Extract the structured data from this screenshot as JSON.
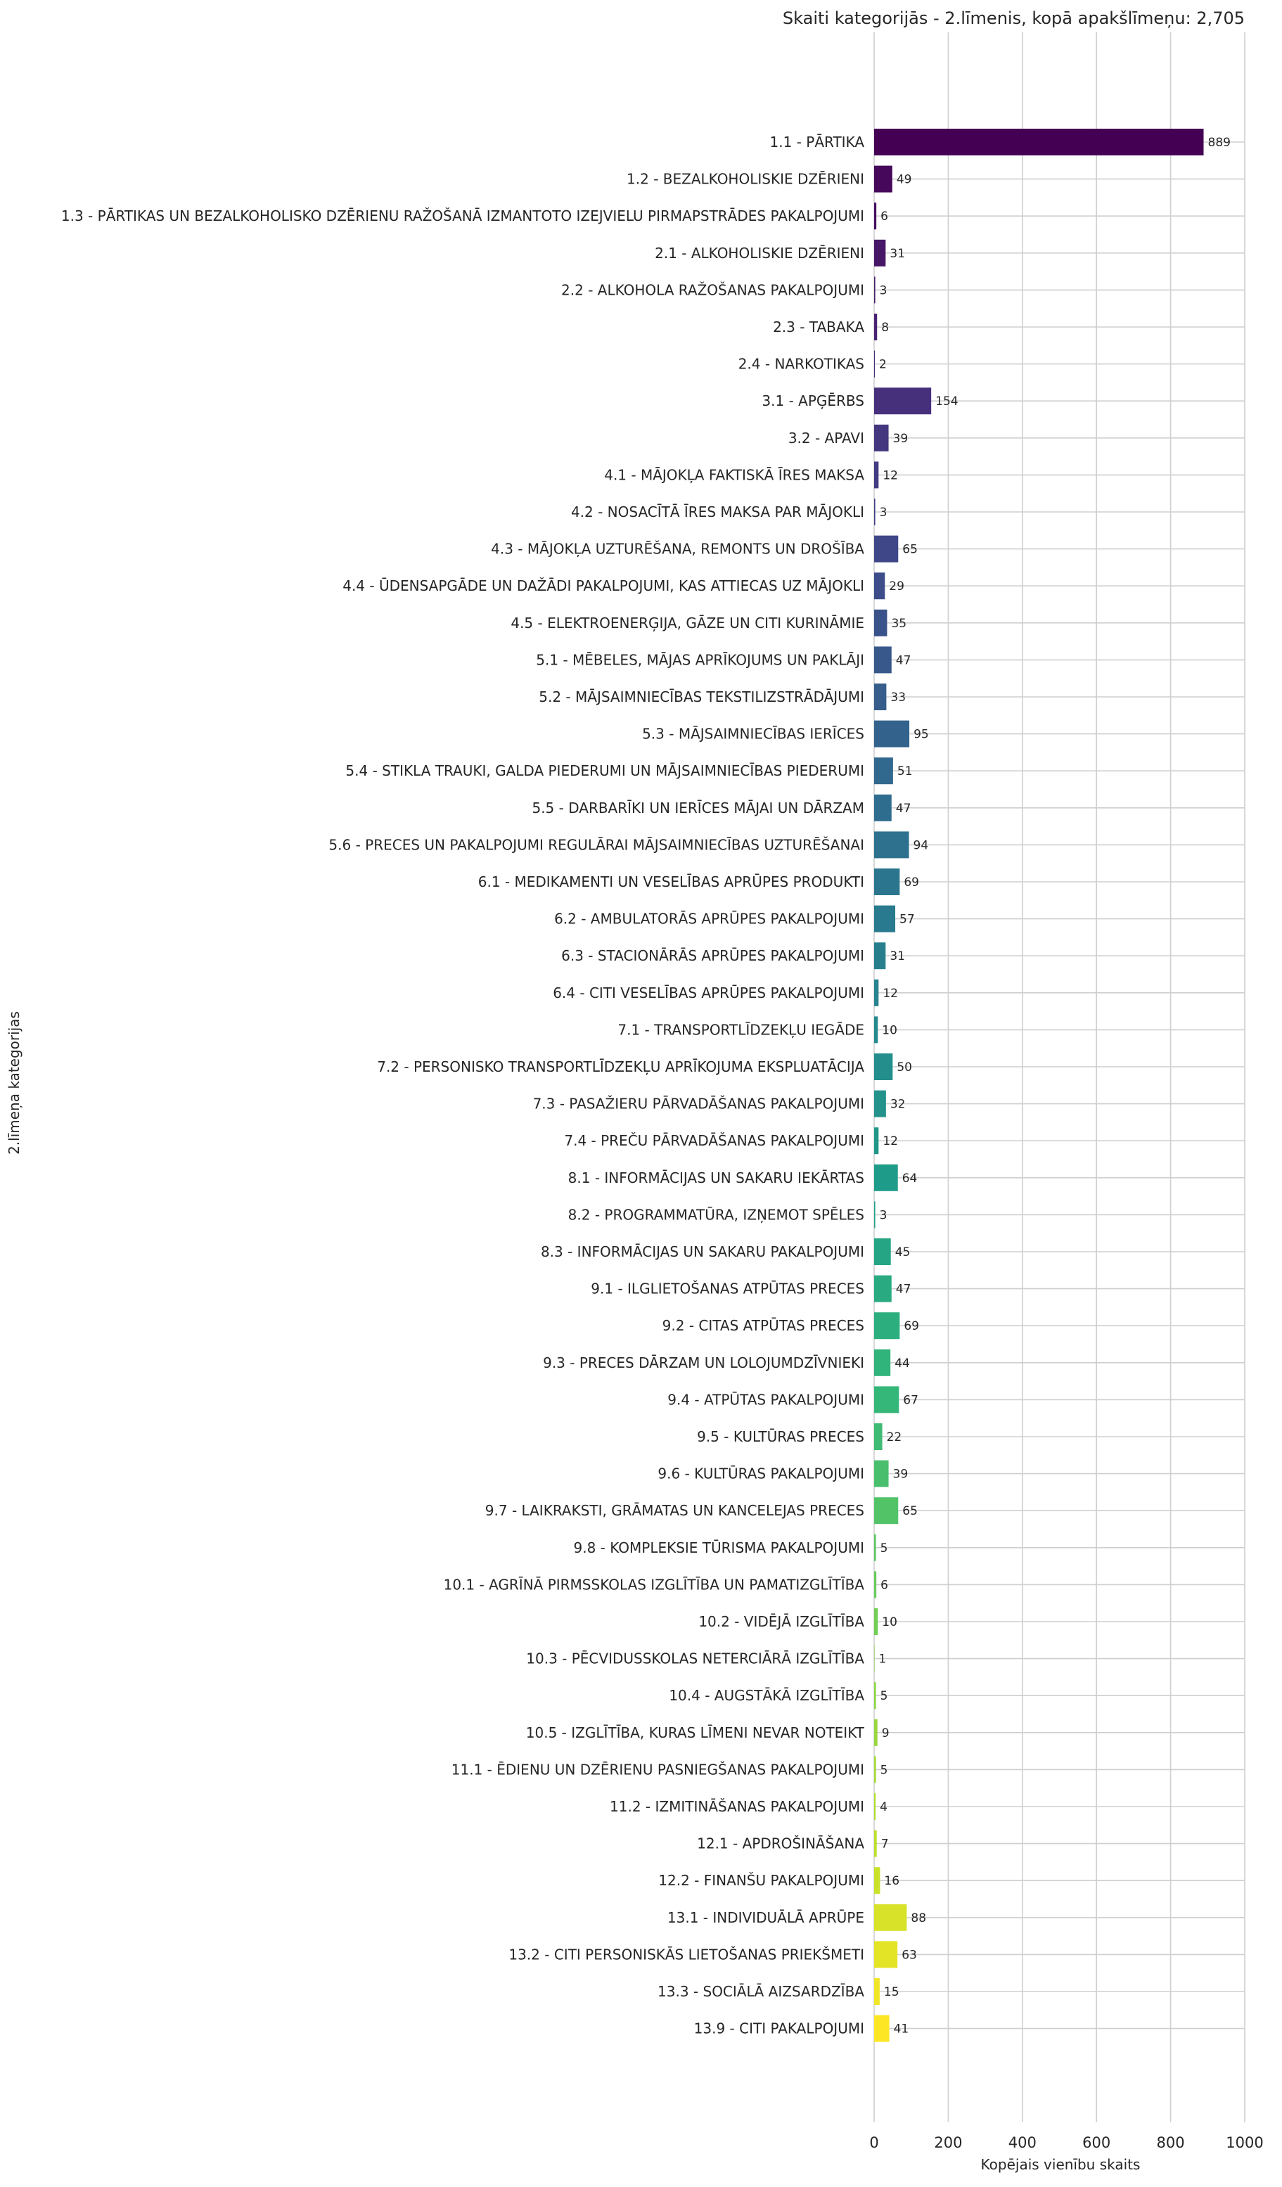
{
  "chart_data": {
    "type": "bar",
    "orientation": "horizontal",
    "title": "Skaiti kategorijās - 2.līmenis, kopā apakšlīmeņu: 2,705",
    "xlabel": "Kopējais vienību skaits",
    "ylabel": "2.līmeņa kategorijas",
    "xlim": [
      0,
      1000
    ],
    "xticks": [
      0,
      200,
      400,
      600,
      800,
      1000
    ],
    "grid": true,
    "colormap": "viridis",
    "categories": [
      "1.1 - PĀRTIKA",
      "1.2 - BEZALKOHOLISKIE DZĒRIENI",
      "1.3 - PĀRTIKAS UN BEZALKOHOLISKO DZĒRIENU RAŽOŠANĀ IZMANTOTO IZEJVIELU PIRMAPSTRĀDES PAKALPOJUMI",
      "2.1 - ALKOHOLISKIE DZĒRIENI",
      "2.2 - ALKOHOLA RAŽOŠANAS PAKALPOJUMI",
      "2.3 - TABAKA",
      "2.4 - NARKOTIKAS",
      "3.1 - APĢĒRBS",
      "3.2 - APAVI",
      "4.1 - MĀJOKĻA FAKTISKĀ ĪRES MAKSA",
      "4.2 - NOSACĪTĀ ĪRES MAKSA PAR MĀJOKLI",
      "4.3 - MĀJOKĻA UZTURĒŠANA, REMONTS UN DROŠĪBA",
      "4.4 - ŪDENSAPGĀDE UN DAŽĀDI PAKALPOJUMI, KAS ATTIECAS UZ MĀJOKLI",
      "4.5 - ELEKTROENERĢIJA, GĀZE UN CITI KURINĀMIE",
      "5.1 - MĒBELES, MĀJAS APRĪKOJUMS UN PAKLĀJI",
      "5.2 - MĀJSAIMNIECĪBAS TEKSTILIZSTRĀDĀJUMI",
      "5.3 - MĀJSAIMNIECĪBAS IERĪCES",
      "5.4 - STIKLA TRAUKI, GALDA PIEDERUMI UN MĀJSAIMNIECĪBAS PIEDERUMI",
      "5.5 - DARBARĪKI UN IERĪCES MĀJAI UN DĀRZAM",
      "5.6 - PRECES UN PAKALPOJUMI REGULĀRAI MĀJSAIMNIECĪBAS UZTURĒŠANAI",
      "6.1 - MEDIKAMENTI UN VESELĪBAS APRŪPES PRODUKTI",
      "6.2 - AMBULATORĀS APRŪPES PAKALPOJUMI",
      "6.3 - STACIONĀRĀS APRŪPES PAKALPOJUMI",
      "6.4 - CITI VESELĪBAS APRŪPES PAKALPOJUMI",
      "7.1 - TRANSPORTLĪDZEKĻU IEGĀDE",
      "7.2 - PERSONISKO TRANSPORTLĪDZEKĻU APRĪKOJUMA EKSPLUATĀCIJA",
      "7.3 - PASAŽIERU PĀRVADĀŠANAS PAKALPOJUMI",
      "7.4 - PREČU PĀRVADĀŠANAS PAKALPOJUMI",
      "8.1 - INFORMĀCIJAS UN SAKARU IEKĀRTAS",
      "8.2 - PROGRAMMATŪRA, IZŅEMOT SPĒLES",
      "8.3 - INFORMĀCIJAS UN SAKARU PAKALPOJUMI",
      "9.1 - ILGLIETOŠANAS ATPŪTAS PRECES",
      "9.2 - CITAS ATPŪTAS PRECES",
      "9.3 - PRECES DĀRZAM UN LOLOJUMDZĪVNIEKI",
      "9.4 - ATPŪTAS PAKALPOJUMI",
      "9.5 - KULTŪRAS PRECES",
      "9.6 - KULTŪRAS PAKALPOJUMI",
      "9.7 - LAIKRAKSTI, GRĀMATAS UN KANCELEJAS PRECES",
      "9.8 - KOMPLEKSIE TŪRISMA PAKALPOJUMI",
      "10.1 - AGRĪNĀ PIRMSSKOLAS IZGLĪTĪBA UN PAMATIZGLĪTĪBA",
      "10.2 - VIDĒJĀ IZGLĪTĪBA",
      "10.3 - PĒCVIDUSSKOLAS NETERCIĀRĀ IZGLĪTĪBA",
      "10.4 - AUGSTĀKĀ IZGLĪTĪBA",
      "10.5 - IZGLĪTĪBA, KURAS LĪMENI NEVAR NOTEIKT",
      "11.1 - ĒDIENU UN DZĒRIENU PASNIEGŠANAS PAKALPOJUMI",
      "11.2 - IZMITINĀŠANAS PAKALPOJUMI",
      "12.1 - APDROŠINĀŠANA",
      "12.2 - FINANŠU PAKALPOJUMI",
      "13.1 - INDIVIDUĀLĀ APRŪPE",
      "13.2 - CITI PERSONISKĀS LIETOŠANAS PRIEKŠMETI",
      "13.3 - SOCIĀLĀ AIZSARDZĪBA",
      "13.9 - CITI PAKALPOJUMI"
    ],
    "values": [
      889,
      49,
      6,
      31,
      3,
      8,
      2,
      154,
      39,
      12,
      3,
      65,
      29,
      35,
      47,
      33,
      95,
      51,
      47,
      94,
      69,
      57,
      31,
      12,
      10,
      50,
      32,
      12,
      64,
      3,
      45,
      47,
      69,
      44,
      67,
      22,
      39,
      65,
      5,
      6,
      10,
      1,
      5,
      9,
      5,
      4,
      7,
      16,
      88,
      63,
      15,
      41
    ]
  }
}
